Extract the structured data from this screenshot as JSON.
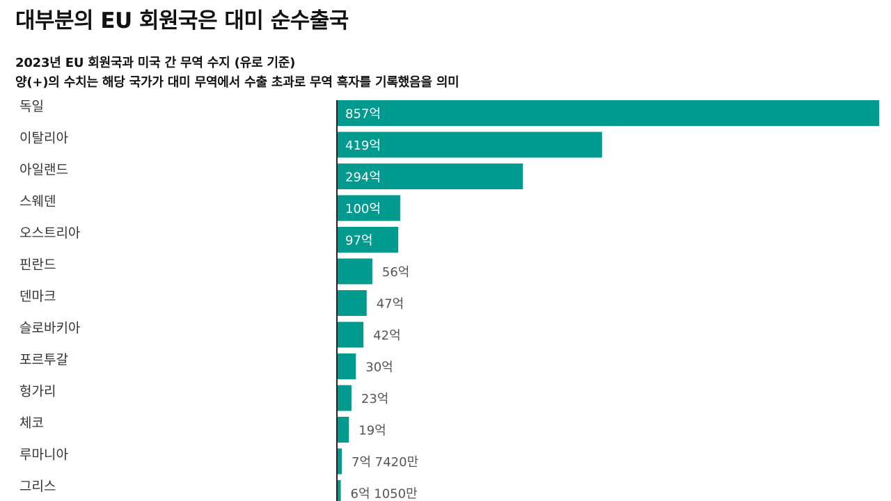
{
  "title": "대부분의 EU 회원국은 대미 순수출국",
  "subtitle_line1": "2023년 EU 회원국과 미국 간 무역 수지 (유로 기준)",
  "subtitle_line2": "양(+)의 수치는 해당 국가가 대미 무역에서 수출 초과로 무역 흑자를 기록했음을 의미",
  "colors": {
    "bar": "#009B8E",
    "axis": "#222222",
    "label_inside": "#ffffff",
    "label_outside": "#555555",
    "category_text": "#333333"
  },
  "chart_data": {
    "type": "bar",
    "orientation": "horizontal",
    "categories": [
      "독일",
      "이탈리아",
      "아일랜드",
      "스웨덴",
      "오스트리아",
      "핀란드",
      "덴마크",
      "슬로바키아",
      "포르투갈",
      "헝가리",
      "체코",
      "루마니아",
      "그리스"
    ],
    "values": [
      857,
      419,
      294,
      100,
      97,
      56,
      47,
      42,
      30,
      23,
      19,
      7.742,
      6.105
    ],
    "value_labels": [
      "857억",
      "419억",
      "294억",
      "100억",
      "97억",
      "56억",
      "47억",
      "42억",
      "30억",
      "23억",
      "19억",
      "7억 7420만",
      "6억 1050만"
    ],
    "unit": "억 유로",
    "xlim": [
      0,
      857
    ],
    "grid": false,
    "legend": "none"
  }
}
